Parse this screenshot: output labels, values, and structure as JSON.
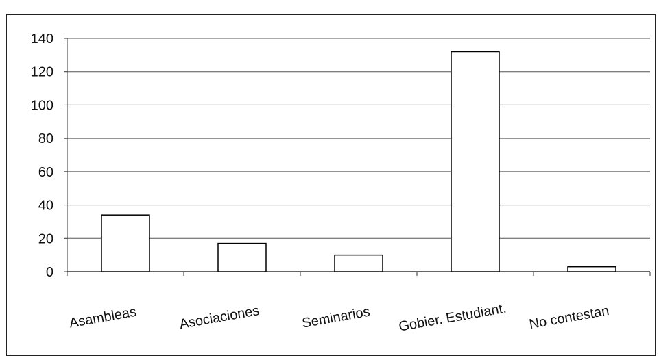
{
  "chart_data": {
    "type": "bar",
    "title": "",
    "xlabel": "",
    "ylabel": "",
    "categories": [
      "Asambleas",
      "Asociaciones",
      "Seminarios",
      "Gobier. Estudiant.",
      "No contestan"
    ],
    "values": [
      34,
      17,
      10,
      132,
      3
    ],
    "ylim": [
      0,
      140
    ],
    "yticks": [
      "0",
      "20",
      "40",
      "60",
      "80",
      "100",
      "120",
      "140"
    ],
    "grid": "horizontal",
    "legend": "none",
    "colors": {
      "bar_fill": "#ffffff",
      "bar_stroke": "#000000",
      "grid": "#555555",
      "axis": "#333333"
    }
  }
}
